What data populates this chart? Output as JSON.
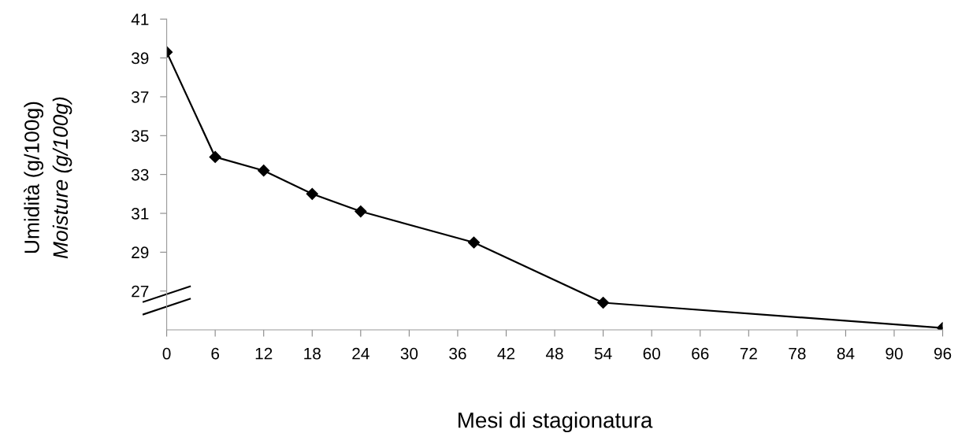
{
  "chart_data": {
    "type": "line",
    "xlabel": "Mesi di stagionatura",
    "ylabel": "Umidità (g/100g)\nMoisture (g/100g)",
    "x": [
      0,
      6,
      12,
      18,
      24,
      38,
      54,
      96
    ],
    "series": [
      {
        "color": "#000000",
        "values": [
          39.3,
          33.9,
          33.2,
          32.0,
          31.1,
          29.5,
          26.4,
          25.1
        ]
      }
    ],
    "xlim": [
      0,
      96
    ],
    "xticks": [
      0,
      6,
      12,
      18,
      24,
      30,
      36,
      42,
      48,
      54,
      60,
      66,
      72,
      78,
      84,
      90,
      96
    ],
    "ylim": [
      25,
      41
    ],
    "yticks": [
      27,
      29,
      31,
      33,
      35,
      37,
      39,
      41
    ],
    "marker": "diamond",
    "line_style": "solid",
    "grid": false,
    "legend": false
  }
}
